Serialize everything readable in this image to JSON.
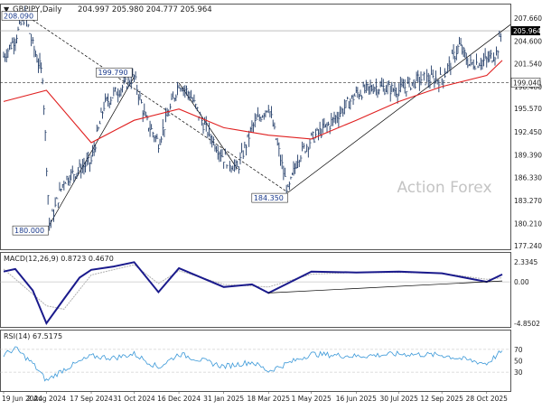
{
  "header": {
    "symbol_label": "GBPJPY,Daily",
    "ohlc": "204.997 205.980 204.777 205.964"
  },
  "watermark": "Action Forex",
  "colors": {
    "price_bar": "#1f3a66",
    "ma": "#e02020",
    "trendline": "#000000",
    "macd_line": "#1a1a8c",
    "macd_signal": "#b0b0b0",
    "rsi": "#3a98d8",
    "current_label_bg": "#000000"
  },
  "chart_data": [
    {
      "type": "line",
      "title": "GBPJPY,Daily",
      "x_labels": [
        "19 Jun 2024",
        "2 Aug 2024",
        "17 Sep 2024",
        "31 Oct 2024",
        "16 Dec 2024",
        "31 Jan 2025",
        "18 Mar 2025",
        "1 May 2025",
        "16 Jun 2025",
        "30 Jul 2025",
        "12 Sep 2025",
        "28 Oct 2025"
      ],
      "y_tick_labels": [
        "207.660",
        "204.600",
        "201.540",
        "198.480",
        "195.570",
        "192.450",
        "189.390",
        "186.330",
        "183.270",
        "180.210",
        "177.240"
      ],
      "ylim": [
        177.24,
        207.66
      ],
      "current_price": "205.964",
      "level_label": "199.040",
      "series": [
        {
          "name": "price",
          "x": [
            "19 Jun 2024",
            "1 Jul 2024",
            "11 Jul 2024",
            "19 Jul 2024",
            "29 Jul 2024",
            "5 Aug 2024",
            "20 Aug 2024",
            "5 Sep 2024",
            "17 Sep 2024",
            "30 Sep 2024",
            "10 Oct 2024",
            "31 Oct 2024",
            "12 Nov 2024",
            "25 Nov 2024",
            "16 Dec 2024",
            "27 Dec 2024",
            "10 Jan 2025",
            "31 Jan 2025",
            "14 Feb 2025",
            "1 Mar 2025",
            "18 Mar 2025",
            "7 Apr 2025",
            "17 Apr 2025",
            "1 May 2025",
            "20 May 2025",
            "16 Jun 2025",
            "5 Jul 2025",
            "30 Jul 2025",
            "20 Aug 2025",
            "12 Sep 2025",
            "30 Sep 2025",
            "10 Oct 2025",
            "28 Oct 2025",
            "7 Nov 2025",
            "13 Nov 2025"
          ],
          "y": [
            202.5,
            205.0,
            208.09,
            204.0,
            200.0,
            180.0,
            186.0,
            187.5,
            188.5,
            196.0,
            197.5,
            199.79,
            194.0,
            191.0,
            199.0,
            197.5,
            193.5,
            189.0,
            187.5,
            193.0,
            196.0,
            184.35,
            189.0,
            191.5,
            193.5,
            197.5,
            198.5,
            198.0,
            199.5,
            199.5,
            204.0,
            201.5,
            202.0,
            203.0,
            205.96
          ]
        },
        {
          "name": "MA",
          "x": [
            "19 Jun 2024",
            "2 Aug 2024",
            "17 Sep 2024",
            "31 Oct 2024",
            "16 Dec 2024",
            "31 Jan 2025",
            "18 Mar 2025",
            "1 May 2025",
            "16 Jun 2025",
            "30 Jul 2025",
            "12 Sep 2025",
            "28 Oct 2025",
            "13 Nov 2025"
          ],
          "y": [
            196.5,
            198.0,
            191.0,
            194.0,
            195.5,
            193.0,
            192.0,
            191.5,
            194.0,
            196.5,
            198.5,
            200.0,
            202.0
          ]
        }
      ],
      "annotations": [
        "208.090",
        "199.790",
        "184.350",
        "180.000"
      ]
    },
    {
      "type": "line",
      "title": "MACD(12,26,9) 0.8723 0.4670",
      "ylim": [
        -4.8502,
        2.3345
      ],
      "y_tick_labels": [
        "2.3345",
        "0.00",
        "-4.8502"
      ],
      "series": [
        {
          "name": "MACD",
          "x": [
            "19 Jun 2024",
            "1 Jul 2024",
            "19 Jul 2024",
            "2 Aug 2024",
            "20 Aug 2024",
            "5 Sep 2024",
            "17 Sep 2024",
            "10 Oct 2024",
            "31 Oct 2024",
            "25 Nov 2024",
            "16 Dec 2024",
            "31 Jan 2025",
            "1 Mar 2025",
            "18 Mar 2025",
            "1 May 2025",
            "16 Jun 2025",
            "30 Jul 2025",
            "12 Sep 2025",
            "28 Oct 2025",
            "13 Nov 2025"
          ],
          "y": [
            1.2,
            1.5,
            -1.0,
            -4.85,
            -2.0,
            0.5,
            1.4,
            1.8,
            2.3,
            -1.2,
            1.6,
            -0.6,
            -0.3,
            -1.3,
            1.2,
            1.1,
            1.2,
            1.0,
            0.0,
            0.87
          ]
        },
        {
          "name": "signal",
          "x": [
            "19 Jun 2024",
            "2 Aug 2024",
            "20 Aug 2024",
            "17 Sep 2024",
            "31 Oct 2024",
            "25 Nov 2024",
            "16 Dec 2024",
            "31 Jan 2025",
            "18 Mar 2025",
            "1 May 2025",
            "16 Jun 2025",
            "30 Jul 2025",
            "12 Sep 2025",
            "28 Oct 2025",
            "13 Nov 2025"
          ],
          "y": [
            1.5,
            -2.8,
            -3.2,
            0.8,
            2.0,
            -0.2,
            1.3,
            -0.3,
            -0.6,
            0.9,
            1.1,
            1.1,
            1.0,
            0.3,
            0.47
          ]
        }
      ]
    },
    {
      "type": "line",
      "title": "RSI(14) 67.5175",
      "ylim": [
        0,
        100
      ],
      "y_tick_labels": [
        "70",
        "50",
        "30"
      ],
      "series": [
        {
          "name": "RSI",
          "x": [
            "19 Jun 2024",
            "1 Jul 2024",
            "19 Jul 2024",
            "2 Aug 2024",
            "20 Aug 2024",
            "17 Sep 2024",
            "10 Oct 2024",
            "31 Oct 2024",
            "25 Nov 2024",
            "16 Dec 2024",
            "31 Jan 2025",
            "1 Mar 2025",
            "18 Mar 2025",
            "1 May 2025",
            "16 Jun 2025",
            "30 Jul 2025",
            "12 Sep 2025",
            "28 Oct 2025",
            "13 Nov 2025"
          ],
          "y": [
            60,
            72,
            45,
            15,
            35,
            58,
            55,
            62,
            38,
            62,
            40,
            48,
            32,
            62,
            58,
            62,
            60,
            45,
            67.5
          ]
        }
      ]
    }
  ]
}
